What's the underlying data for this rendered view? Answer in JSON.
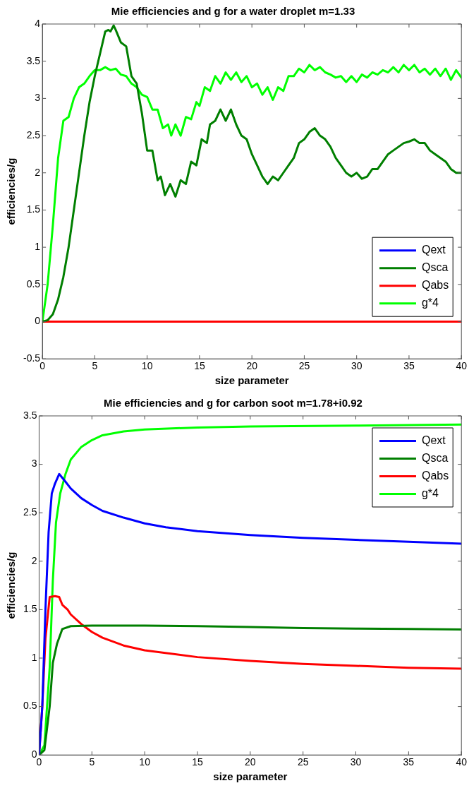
{
  "chart_data": [
    {
      "type": "line",
      "title": "Mie efficiencies and g for a water droplet m=1.33",
      "xlabel": "size parameter",
      "ylabel": "efficiencies/g",
      "xlim": [
        0,
        40
      ],
      "xticks": [
        0,
        5,
        10,
        15,
        20,
        25,
        30,
        35,
        40
      ],
      "ylim": [
        -0.5,
        4
      ],
      "yticks": [
        -0.5,
        0,
        0.5,
        1,
        1.5,
        2,
        2.5,
        3,
        3.5,
        4
      ],
      "legend": "bottom right",
      "grid": false,
      "line_style": "solid",
      "marker": "none",
      "series": [
        {
          "name": "Qext",
          "color": "#0000ff"
        },
        {
          "name": "Qsca",
          "color": "#007f00",
          "x": [
            0,
            0.5,
            1,
            1.5,
            2,
            2.5,
            3,
            3.5,
            4,
            4.5,
            5,
            5.5,
            6,
            6.3,
            6.5,
            6.8,
            7,
            7.5,
            8,
            8.5,
            9,
            9.5,
            10,
            10.5,
            11,
            11.3,
            11.7,
            12.2,
            12.7,
            13.2,
            13.7,
            14.2,
            14.7,
            15.2,
            15.7,
            16,
            16.5,
            17,
            17.5,
            18,
            18.5,
            19,
            19.5,
            20,
            20.5,
            21,
            21.5,
            22,
            22.5,
            23,
            23.5,
            24,
            24.5,
            25,
            25.5,
            26,
            26.5,
            27,
            27.5,
            28,
            28.5,
            29,
            29.5,
            30,
            30.5,
            31,
            31.5,
            32,
            32.5,
            33,
            33.5,
            34,
            34.5,
            35,
            35.5,
            36,
            36.5,
            37,
            37.5,
            38,
            38.5,
            39,
            39.5,
            40
          ],
          "values": [
            0,
            0.02,
            0.1,
            0.3,
            0.6,
            1.0,
            1.5,
            2.0,
            2.5,
            2.95,
            3.3,
            3.6,
            3.9,
            3.92,
            3.9,
            3.98,
            3.92,
            3.75,
            3.7,
            3.3,
            3.2,
            2.8,
            2.3,
            2.3,
            1.9,
            1.95,
            1.7,
            1.85,
            1.68,
            1.9,
            1.85,
            2.15,
            2.1,
            2.45,
            2.4,
            2.65,
            2.7,
            2.85,
            2.7,
            2.85,
            2.65,
            2.5,
            2.45,
            2.25,
            2.1,
            1.95,
            1.85,
            1.95,
            1.9,
            2.0,
            2.1,
            2.2,
            2.4,
            2.45,
            2.55,
            2.6,
            2.5,
            2.45,
            2.35,
            2.2,
            2.1,
            2.0,
            1.95,
            2.0,
            1.92,
            1.95,
            2.05,
            2.05,
            2.15,
            2.25,
            2.3,
            2.35,
            2.4,
            2.42,
            2.45,
            2.4,
            2.4,
            2.3,
            2.25,
            2.2,
            2.15,
            2.05,
            2.0,
            2.0
          ]
        },
        {
          "name": "Qabs",
          "color": "#ff0000",
          "x": [
            0,
            40
          ],
          "values": [
            0,
            0
          ]
        },
        {
          "name": "g*4",
          "color": "#00ff00",
          "x": [
            0,
            0.5,
            1,
            1.5,
            2,
            2.5,
            3,
            3.5,
            4,
            4.5,
            5,
            5.5,
            6,
            6.5,
            7,
            7.5,
            8,
            8.5,
            9,
            9.5,
            10,
            10.5,
            11,
            11.5,
            12,
            12.3,
            12.7,
            13.2,
            13.7,
            14.2,
            14.7,
            15,
            15.5,
            16,
            16.5,
            17,
            17.5,
            18,
            18.5,
            19,
            19.5,
            20,
            20.5,
            21,
            21.5,
            22,
            22.5,
            23,
            23.5,
            24,
            24.5,
            25,
            25.5,
            26,
            26.5,
            27,
            27.5,
            28,
            28.5,
            29,
            29.5,
            30,
            30.5,
            31,
            31.5,
            32,
            32.5,
            33,
            33.5,
            34,
            34.5,
            35,
            35.5,
            36,
            36.5,
            37,
            37.5,
            38,
            38.5,
            39,
            39.5,
            40
          ],
          "values": [
            0,
            0.5,
            1.3,
            2.2,
            2.7,
            2.75,
            3.0,
            3.15,
            3.2,
            3.3,
            3.38,
            3.38,
            3.42,
            3.38,
            3.4,
            3.32,
            3.3,
            3.2,
            3.15,
            3.05,
            3.02,
            2.85,
            2.85,
            2.6,
            2.65,
            2.5,
            2.65,
            2.5,
            2.75,
            2.72,
            2.95,
            2.9,
            3.15,
            3.1,
            3.3,
            3.2,
            3.35,
            3.25,
            3.35,
            3.22,
            3.3,
            3.15,
            3.2,
            3.05,
            3.15,
            2.98,
            3.15,
            3.1,
            3.3,
            3.3,
            3.4,
            3.35,
            3.45,
            3.38,
            3.42,
            3.35,
            3.32,
            3.28,
            3.3,
            3.22,
            3.3,
            3.22,
            3.32,
            3.28,
            3.35,
            3.32,
            3.38,
            3.35,
            3.42,
            3.35,
            3.45,
            3.38,
            3.45,
            3.35,
            3.4,
            3.32,
            3.4,
            3.3,
            3.4,
            3.25,
            3.38,
            3.28
          ]
        }
      ]
    },
    {
      "type": "line",
      "title": "Mie efficiencies and g for carbon soot m=1.78+i0.92",
      "xlabel": "size parameter",
      "ylabel": "efficiencies/g",
      "xlim": [
        0,
        40
      ],
      "xticks": [
        0,
        5,
        10,
        15,
        20,
        25,
        30,
        35,
        40
      ],
      "ylim": [
        0,
        3.5
      ],
      "yticks": [
        0,
        0.5,
        1,
        1.5,
        2,
        2.5,
        3,
        3.5
      ],
      "legend": "top right",
      "grid": false,
      "line_style": "solid",
      "marker": "none",
      "series": [
        {
          "name": "Qext",
          "color": "#0000ff",
          "x": [
            0,
            0.3,
            0.6,
            0.9,
            1.2,
            1.5,
            1.9,
            2.5,
            3,
            4,
            5,
            6,
            8,
            10,
            12,
            15,
            20,
            25,
            30,
            35,
            40
          ],
          "values": [
            0,
            0.5,
            1.5,
            2.3,
            2.7,
            2.8,
            2.9,
            2.82,
            2.75,
            2.65,
            2.58,
            2.52,
            2.45,
            2.39,
            2.35,
            2.31,
            2.27,
            2.24,
            2.22,
            2.2,
            2.18
          ]
        },
        {
          "name": "Qsca",
          "color": "#007f00",
          "x": [
            0,
            0.5,
            1,
            1.3,
            1.7,
            2.2,
            3,
            5,
            10,
            15,
            20,
            25,
            30,
            35,
            40
          ],
          "values": [
            0,
            0.05,
            0.5,
            0.95,
            1.15,
            1.3,
            1.33,
            1.335,
            1.335,
            1.33,
            1.32,
            1.31,
            1.305,
            1.3,
            1.295
          ]
        },
        {
          "name": "Qabs",
          "color": "#ff0000",
          "x": [
            0,
            0.3,
            0.6,
            1,
            1.5,
            1.9,
            2.2,
            2.7,
            3,
            4,
            5,
            6,
            8,
            10,
            15,
            20,
            25,
            30,
            35,
            40
          ],
          "values": [
            0,
            0.5,
            1.2,
            1.63,
            1.64,
            1.63,
            1.55,
            1.5,
            1.45,
            1.35,
            1.27,
            1.21,
            1.13,
            1.08,
            1.01,
            0.97,
            0.94,
            0.92,
            0.9,
            0.89
          ]
        },
        {
          "name": "g*4",
          "color": "#00ff00",
          "x": [
            0,
            0.5,
            1,
            1.3,
            1.6,
            2,
            2.5,
            3,
            4,
            5,
            6,
            8,
            10,
            15,
            20,
            30,
            40
          ],
          "values": [
            0,
            0.1,
            0.9,
            1.8,
            2.4,
            2.7,
            2.9,
            3.05,
            3.18,
            3.25,
            3.3,
            3.34,
            3.36,
            3.38,
            3.39,
            3.4,
            3.41
          ]
        }
      ]
    }
  ]
}
